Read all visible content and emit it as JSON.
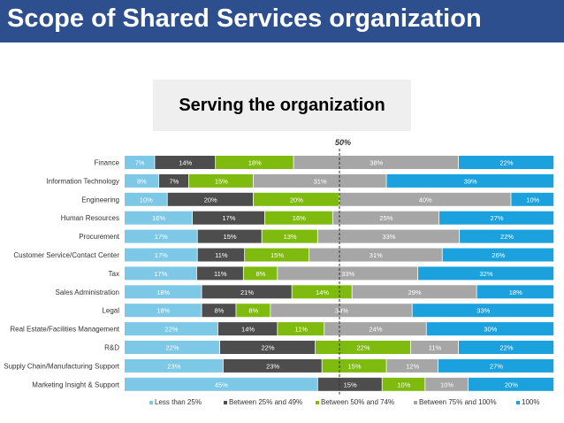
{
  "slide": {
    "title": "Scope of Shared Services organization",
    "subtitle": "Serving the organization"
  },
  "colors": {
    "title_bar": "#2e4f8e",
    "less_than_25": "#7dc8e6",
    "between_25_49": "#4d4d4d",
    "between_50_74": "#7fba0f",
    "between_75_100": "#a6a6a6",
    "full_100": "#1ba1dd"
  },
  "chart_data": {
    "type": "bar",
    "orientation": "horizontal",
    "stacked": true,
    "normalized_percent": true,
    "reference_line": {
      "label": "50%",
      "value": 50,
      "style": "dashed"
    },
    "categories": [
      "Finance",
      "Information Technology",
      "Engineering",
      "Human Resources",
      "Procurement",
      "Customer Service/Contact Center",
      "Tax",
      "Sales Administration",
      "Legal",
      "Real Estate/Facilities Management",
      "R&D",
      "Supply Chain/Manufacturing Support",
      "Marketing Insight & Support"
    ],
    "series": [
      {
        "name": "Less than 25%",
        "color": "#7dc8e6",
        "values": [
          7,
          8,
          10,
          16,
          17,
          17,
          17,
          18,
          18,
          22,
          22,
          23,
          45
        ]
      },
      {
        "name": "Between 25% and 49%",
        "color": "#4d4d4d",
        "values": [
          14,
          7,
          20,
          17,
          15,
          11,
          11,
          21,
          8,
          14,
          22,
          23,
          15
        ]
      },
      {
        "name": "Between 50% and 74%",
        "color": "#7fba0f",
        "values": [
          18,
          15,
          20,
          16,
          13,
          15,
          8,
          14,
          8,
          11,
          22,
          15,
          10
        ]
      },
      {
        "name": "Between 75% and 100%",
        "color": "#a6a6a6",
        "values": [
          38,
          31,
          40,
          25,
          33,
          31,
          33,
          29,
          33,
          24,
          11,
          12,
          10
        ]
      },
      {
        "name": "100%",
        "color": "#1ba1dd",
        "values": [
          22,
          39,
          10,
          27,
          22,
          26,
          32,
          18,
          33,
          30,
          22,
          27,
          20
        ]
      }
    ],
    "value_labels": [
      [
        "7%",
        "14%",
        "18%",
        "38%",
        "22%"
      ],
      [
        "8%",
        "7%",
        "15%",
        "31%",
        "39%"
      ],
      [
        "10%",
        "20%",
        "20%",
        "40%",
        "10%"
      ],
      [
        "16%",
        "17%",
        "16%",
        "25%",
        "27%"
      ],
      [
        "17%",
        "15%",
        "13%",
        "33%",
        "22%"
      ],
      [
        "17%",
        "11%",
        "15%",
        "31%",
        "26%"
      ],
      [
        "17%",
        "11%",
        "8%",
        "33%",
        "32%"
      ],
      [
        "18%",
        "21%",
        "14%",
        "29%",
        "18%"
      ],
      [
        "18%",
        "8%",
        "8%",
        "33%",
        "33%"
      ],
      [
        "22%",
        "14%",
        "11%",
        "24%",
        "30%"
      ],
      [
        "22%",
        "22%",
        "22%",
        "11%",
        "22%"
      ],
      [
        "23%",
        "23%",
        "15%",
        "12%",
        "27%"
      ],
      [
        "45%",
        "15%",
        "10%",
        "10%",
        "20%"
      ]
    ],
    "xlim": [
      0,
      100
    ],
    "legend_position": "bottom",
    "grid": false
  }
}
